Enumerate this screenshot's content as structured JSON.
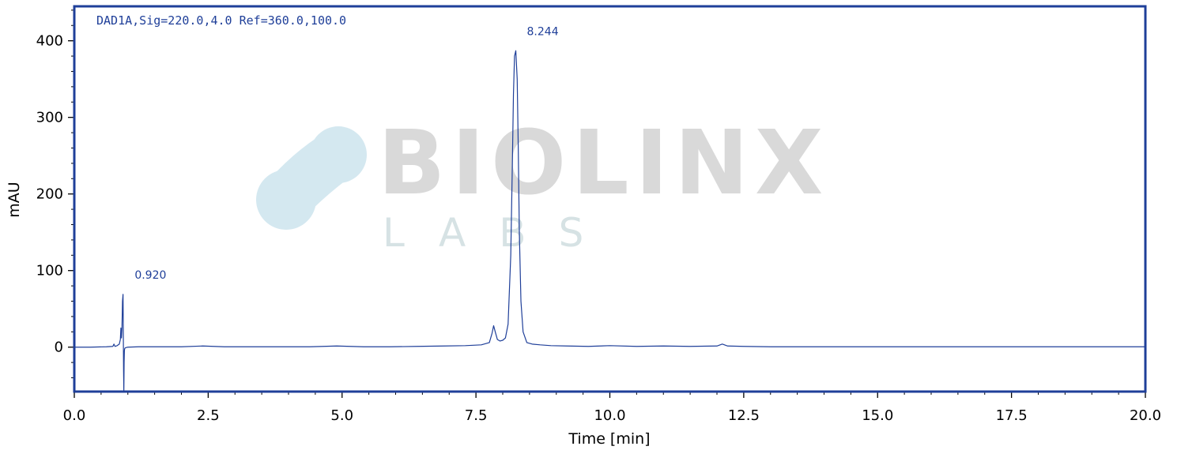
{
  "chart_data": {
    "type": "line",
    "signal_label": "DAD1A,Sig=220.0,4.0 Ref=360.0,100.0",
    "xlabel": "Time [min]",
    "ylabel": "mAU",
    "xlim": [
      0,
      20
    ],
    "ylim": [
      -58,
      445
    ],
    "x_ticks": [
      0,
      2.5,
      5,
      7.5,
      10,
      12.5,
      15,
      17.5,
      20
    ],
    "x_tick_labels": [
      "0.0",
      "2.5",
      "5.0",
      "7.5",
      "10.0",
      "12.5",
      "15.0",
      "17.5",
      "20.0"
    ],
    "y_ticks": [
      0,
      100,
      200,
      300,
      400
    ],
    "y_tick_labels": [
      "0",
      "100",
      "200",
      "300",
      "400"
    ],
    "grid": false,
    "line_color": "#1f3f99",
    "frame_color": "#1f3f99",
    "peaks": [
      {
        "retention_time": 0.92,
        "label": "0.920",
        "height": 69
      },
      {
        "retention_time": 8.244,
        "label": "8.244",
        "height": 387
      }
    ],
    "series": [
      {
        "x": [
          0.0,
          0.3,
          0.6,
          0.72,
          0.74,
          0.76,
          0.8,
          0.84,
          0.86,
          0.87,
          0.88,
          0.89,
          0.9,
          0.91,
          0.915,
          0.92,
          0.925,
          0.93,
          0.935,
          0.94,
          0.95,
          0.97,
          1.0,
          1.2,
          1.6,
          2.0,
          2.4,
          2.8,
          3.2,
          3.6,
          4.0,
          4.4,
          4.9,
          5.4,
          5.9,
          6.4,
          6.9,
          7.3,
          7.6,
          7.75,
          7.8,
          7.83,
          7.86,
          7.9,
          7.95,
          8.0,
          8.05,
          8.1,
          8.15,
          8.18,
          8.2,
          8.22,
          8.244,
          8.27,
          8.29,
          8.31,
          8.34,
          8.38,
          8.45,
          8.55,
          8.7,
          8.9,
          9.2,
          9.6,
          10.0,
          10.5,
          11.0,
          11.5,
          12.0,
          12.1,
          12.2,
          12.5,
          13.0,
          14.0,
          15.0,
          16.0,
          17.0,
          18.0,
          19.0,
          20.0
        ],
        "y": [
          0,
          0,
          0.5,
          1,
          4,
          1,
          2,
          4,
          10,
          25,
          12,
          25,
          60,
          69,
          20,
          -30,
          -58,
          -20,
          -5,
          -2,
          -1,
          -0.5,
          0,
          0.5,
          0.5,
          0.5,
          1.5,
          0.5,
          0.5,
          0.5,
          0.5,
          0.5,
          1.5,
          0.5,
          0.5,
          1,
          1.5,
          2,
          3,
          6,
          18,
          28,
          20,
          10,
          8,
          9,
          12,
          30,
          120,
          240,
          330,
          380,
          387,
          350,
          260,
          150,
          60,
          20,
          6,
          4,
          3,
          2,
          1.5,
          1,
          2,
          1,
          1.5,
          1,
          1.5,
          4,
          1.5,
          1,
          0.5,
          0.5,
          0.5,
          0.5,
          0.5,
          0.5,
          0.5,
          0.5
        ]
      }
    ]
  },
  "watermark": {
    "title": "BIOLINX",
    "subtitle": "LABS"
  }
}
